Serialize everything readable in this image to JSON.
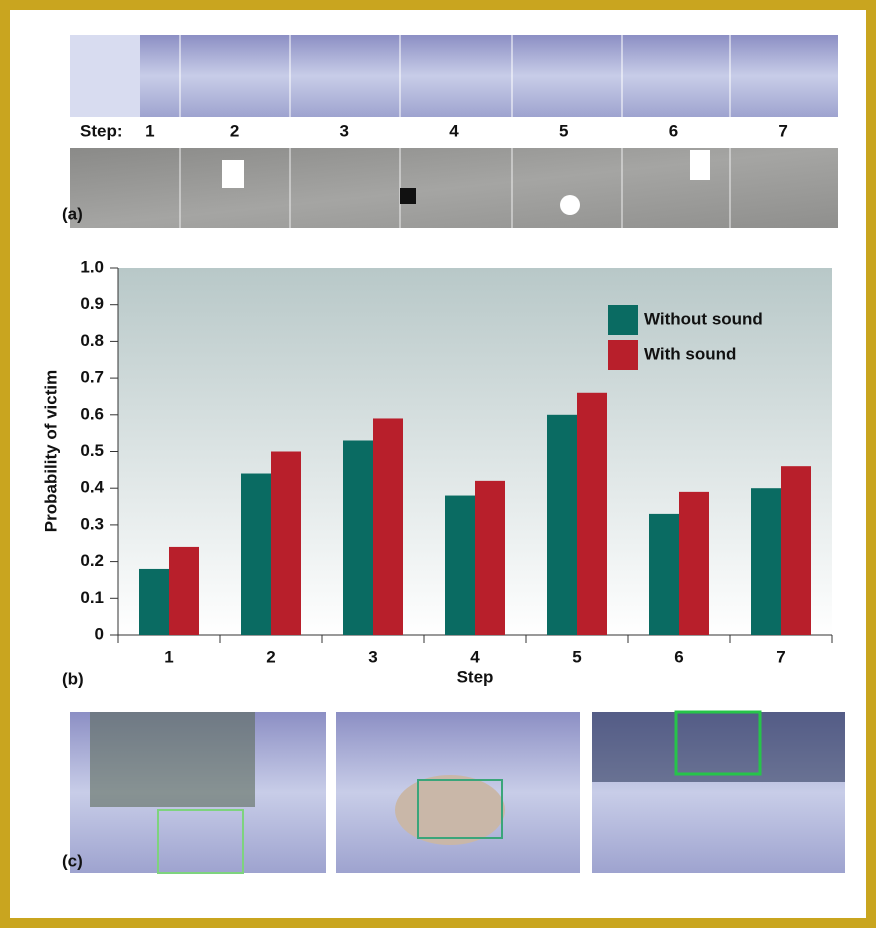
{
  "panel_a": {
    "label": "(a)",
    "step_label": "Step:"
  },
  "panel_c": {
    "label": "(c)"
  },
  "chart_data": {
    "type": "bar",
    "panel_label": "(b)",
    "x_label": "Step",
    "y_label": "Probability of victim",
    "categories": [
      "1",
      "2",
      "3",
      "4",
      "5",
      "6",
      "7"
    ],
    "series": [
      {
        "name": "Without sound",
        "color": "#0a6b62",
        "values": [
          0.18,
          0.44,
          0.53,
          0.38,
          0.6,
          0.33,
          0.4
        ]
      },
      {
        "name": "With sound",
        "color": "#b81f2b",
        "values": [
          0.24,
          0.5,
          0.59,
          0.42,
          0.66,
          0.39,
          0.46
        ]
      }
    ],
    "ylim": [
      0,
      1
    ],
    "yticks": [
      0,
      0.1,
      0.2,
      0.3,
      0.4,
      0.5,
      0.6,
      0.7,
      0.8,
      0.9,
      {
        "value": 1,
        "label": "1.0"
      }
    ],
    "legend": "upper right"
  }
}
